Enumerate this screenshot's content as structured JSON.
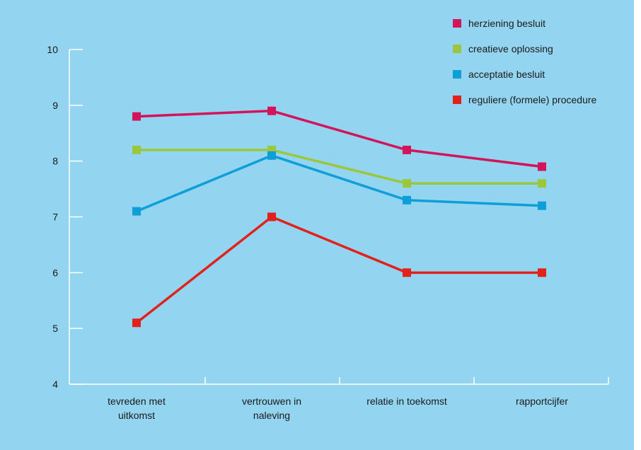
{
  "chart_data": {
    "type": "line",
    "categories": [
      [
        "tevreden met",
        "uitkomst"
      ],
      [
        "vertrouwen in",
        "naleving"
      ],
      [
        "relatie in toekomst"
      ],
      [
        "rapportcijfer"
      ]
    ],
    "ylim": [
      4,
      10
    ],
    "yticks": [
      4,
      5,
      6,
      7,
      8,
      9,
      10
    ],
    "grid": false,
    "legend_position": "top-right",
    "background": "#93d5f0",
    "series": [
      {
        "name": "herziening besluit",
        "color": "#d4145a",
        "values": [
          8.8,
          8.9,
          8.2,
          7.9
        ]
      },
      {
        "name": "creatieve oplossing",
        "color": "#9bc73d",
        "values": [
          8.2,
          8.2,
          7.6,
          7.6
        ]
      },
      {
        "name": "acceptatie besluit",
        "color": "#0f9fd8",
        "values": [
          7.1,
          8.1,
          7.3,
          7.2
        ]
      },
      {
        "name": "reguliere (formele) procedure",
        "color": "#e3211b",
        "values": [
          5.1,
          7.0,
          6.0,
          6.0
        ]
      }
    ]
  }
}
